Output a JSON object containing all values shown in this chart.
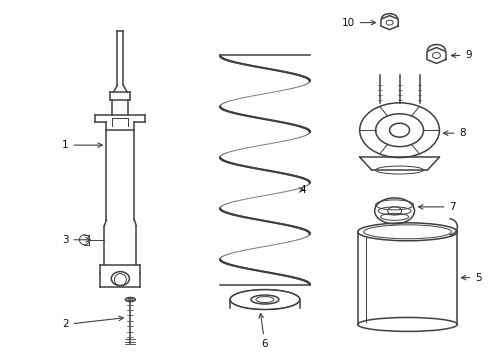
{
  "background_color": "#ffffff",
  "line_color": "#404040",
  "label_color": "#111111",
  "figsize": [
    4.9,
    3.6
  ],
  "dpi": 100
}
